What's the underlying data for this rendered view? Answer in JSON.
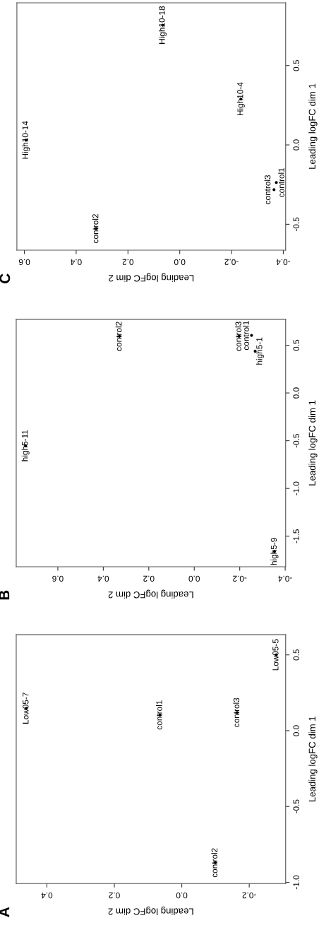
{
  "chart_data": [
    {
      "type": "scatter",
      "title": "A",
      "xlabel": "Leading logFC dim 2",
      "ylabel": "Leading logFC dim 1",
      "marker": "circle",
      "xlim": [
        0.491,
        -0.308
      ],
      "ylim": [
        -1.008,
        0.633
      ],
      "xticks": [
        {
          "value": 0.4,
          "label": "0.4"
        },
        {
          "value": 0.2,
          "label": "0.2"
        },
        {
          "value": 0,
          "label": "0.0"
        },
        {
          "value": -0.2,
          "label": "-0.2"
        }
      ],
      "yticks": [
        {
          "value": -1.0,
          "label": "-1.0"
        },
        {
          "value": -0.5,
          "label": "-0.5"
        },
        {
          "value": 0,
          "label": "0.0"
        },
        {
          "value": 0.5,
          "label": "0.5"
        }
      ],
      "series": [
        {
          "color": "#000000",
          "x": [
            0.461,
            0.065,
            -0.164,
            -0.099,
            -0.28
          ],
          "values": [
            0.148,
            0.104,
            0.12,
            -0.871,
            0.5
          ],
          "value_labels": [
            "Low05-7",
            "control1",
            "control3",
            "control2",
            "Low05-5"
          ]
        }
      ]
    },
    {
      "type": "scatter",
      "title": "B",
      "xlabel": "Leading logFC dim 2",
      "ylabel": "Leading logFC dim 1",
      "marker": "circle",
      "xlim": [
        0.783,
        -0.402
      ],
      "ylim": [
        -1.82,
        0.771
      ],
      "xticks": [
        {
          "value": 0.6,
          "label": "0.6"
        },
        {
          "value": 0.4,
          "label": "0.4"
        },
        {
          "value": 0.2,
          "label": "0.2"
        },
        {
          "value": 0,
          "label": "0.0"
        },
        {
          "value": -0.2,
          "label": "-0.2"
        },
        {
          "value": -0.4,
          "label": "-0.4"
        }
      ],
      "yticks": [
        {
          "value": -1.5,
          "label": "-1.5"
        },
        {
          "value": -1.0,
          "label": "-1.0"
        },
        {
          "value": -0.5,
          "label": "-0.5"
        },
        {
          "value": 0,
          "label": "0.0"
        },
        {
          "value": 0.5,
          "label": "0.5"
        }
      ],
      "series": [
        {
          "color": "#000000",
          "x": [
            0.742,
            0.329,
            -0.197,
            -0.252,
            -0.268,
            -0.353
          ],
          "values": [
            -0.552,
            0.594,
            0.594,
            0.603,
            0.438,
            -1.66
          ],
          "value_labels": [
            "high5-11",
            "control2",
            "control3",
            "control1",
            "high5-1",
            "high5-9"
          ]
        }
      ]
    },
    {
      "type": "scatter",
      "title": "C",
      "xlabel": "Leading logFC dim 2",
      "ylabel": "Leading logFC dim 1",
      "marker": "circle",
      "xlim": [
        0.629,
        -0.409
      ],
      "ylim": [
        -0.663,
        0.895
      ],
      "xticks": [
        {
          "value": 0.6,
          "label": "0.6"
        },
        {
          "value": 0.4,
          "label": "0.4"
        },
        {
          "value": 0.2,
          "label": "0.2"
        },
        {
          "value": 0,
          "label": "0.0"
        },
        {
          "value": -0.2,
          "label": "-0.2"
        },
        {
          "value": -0.4,
          "label": "-0.4"
        }
      ],
      "yticks": [
        {
          "value": -0.5,
          "label": "-0.5"
        },
        {
          "value": 0,
          "label": "0.0"
        },
        {
          "value": 0.5,
          "label": "0.5"
        }
      ],
      "series": [
        {
          "color": "#000000",
          "x": [
            0.066,
            -0.236,
            0.594,
            0.323,
            -0.364,
            -0.373
          ],
          "values": [
            0.754,
            0.289,
            0.03,
            -0.527,
            -0.282,
            -0.237
          ],
          "value_labels": [
            "High10-18",
            "High10-4",
            "High10-14",
            "control2",
            "control3",
            "control1"
          ]
        }
      ]
    }
  ]
}
